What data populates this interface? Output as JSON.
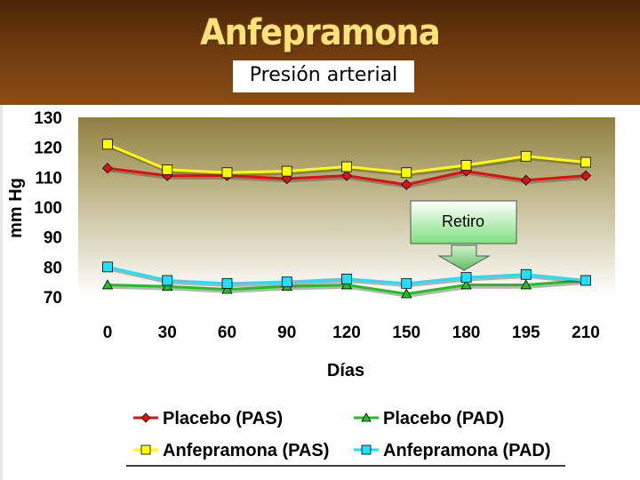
{
  "header": {
    "title": "Anfepramona",
    "subtitle": "Presión arterial"
  },
  "chart_data": {
    "type": "line",
    "xlabel": "Días",
    "ylabel": "mm Hg",
    "ylim": [
      70,
      130
    ],
    "yticks": [
      130,
      120,
      110,
      100,
      90,
      80,
      70
    ],
    "categories": [
      "0",
      "30",
      "60",
      "90",
      "120",
      "150",
      "180",
      "195",
      "210"
    ],
    "grid": false,
    "legend_placement": "bottom",
    "series": [
      {
        "name": "Placebo (PAS)",
        "color": "#e01010",
        "marker": "diamond",
        "values": [
          113,
          110.5,
          110.5,
          109.5,
          110.5,
          107.5,
          112,
          109,
          110.5
        ]
      },
      {
        "name": "Placebo (PAD)",
        "color": "#20c020",
        "marker": "triangle",
        "values": [
          74,
          73.5,
          72.5,
          73.5,
          74,
          71,
          74,
          74,
          75.5
        ]
      },
      {
        "name": "Anfepramona (PAS)",
        "color": "#ffff00",
        "marker": "square",
        "values": [
          121,
          112.5,
          111.5,
          112,
          113.5,
          111.5,
          114,
          117,
          115
        ]
      },
      {
        "name": "Anfepramona (PAD)",
        "color": "#20e0ff",
        "marker": "square",
        "values": [
          80,
          75.5,
          74.5,
          75,
          76,
          74.5,
          76.5,
          77.5,
          75.5
        ]
      }
    ],
    "annotations": [
      {
        "text": "Retiro",
        "at_category": "180"
      }
    ]
  }
}
